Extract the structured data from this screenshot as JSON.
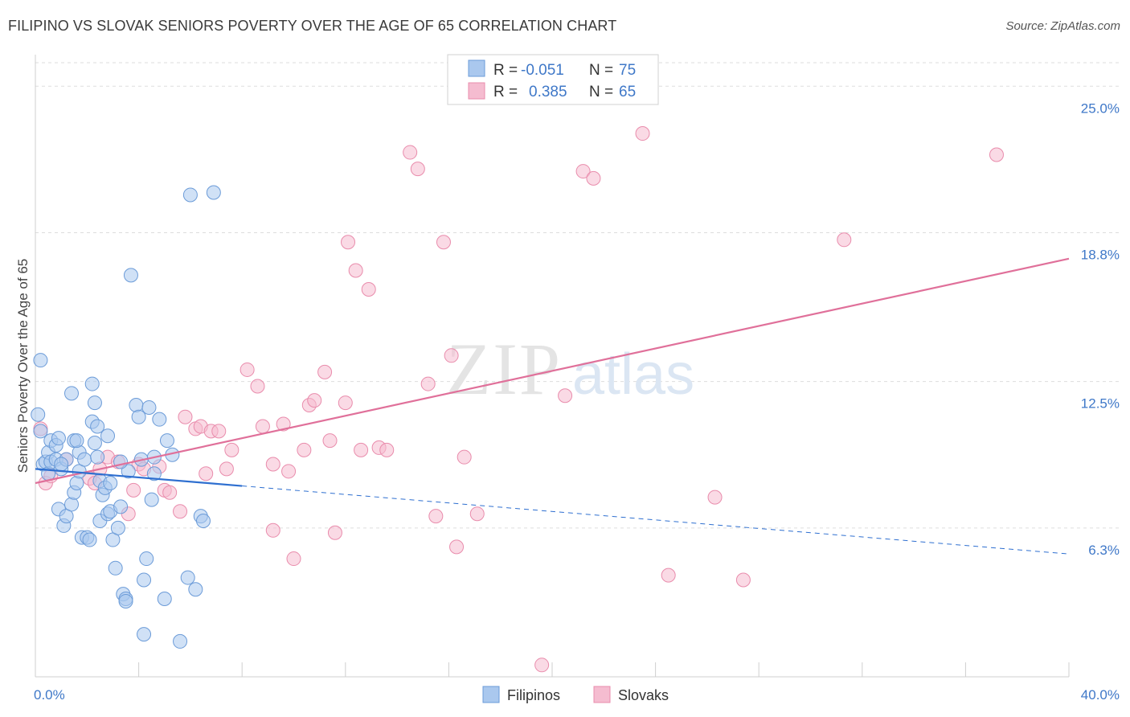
{
  "title": "FILIPINO VS SLOVAK SENIORS POVERTY OVER THE AGE OF 65 CORRELATION CHART",
  "source": "Source: ZipAtlas.com",
  "watermark": {
    "zip": "ZIP",
    "atlas": "atlas"
  },
  "legend": {
    "r_label": "R =",
    "n_label": "N =",
    "rows": [
      {
        "r": "-0.051",
        "n": "75"
      },
      {
        "r": "0.385",
        "n": "65"
      }
    ]
  },
  "bottom_legend": [
    "Filipinos",
    "Slovaks"
  ],
  "colors": {
    "filipino_fill": "#aac8ee",
    "filipino_stroke": "#6b9bd8",
    "filipino_line": "#2e6fd0",
    "slovak_fill": "#f5bcd0",
    "slovak_stroke": "#e98cac",
    "slovak_line": "#e0709a",
    "tick_label": "#3f78c8",
    "grid": "#dddddd"
  },
  "chart_data": {
    "type": "scatter",
    "title": "FILIPINO VS SLOVAK SENIORS POVERTY OVER THE AGE OF 65 CORRELATION CHART",
    "xlabel": "",
    "ylabel": "Seniors Poverty Over the Age of 65",
    "xlim": [
      0,
      40
    ],
    "ylim": [
      0,
      26.2
    ],
    "x_tick_labels": [
      {
        "value": 0,
        "label": "0.0%"
      },
      {
        "value": 40,
        "label": "40.0%"
      }
    ],
    "y_tick_labels": [
      {
        "value": 6.3,
        "label": "6.3%"
      },
      {
        "value": 12.5,
        "label": "12.5%"
      },
      {
        "value": 18.8,
        "label": "18.8%"
      },
      {
        "value": 25.0,
        "label": "25.0%"
      }
    ],
    "grid": "horizontal dashed",
    "series": [
      {
        "name": "Filipinos",
        "r": -0.051,
        "n": 75,
        "trend": {
          "x0": 0,
          "y0": 8.8,
          "x1": 40,
          "y1": 5.2,
          "solid_until": 8
        },
        "points": [
          [
            0.1,
            11.1
          ],
          [
            0.2,
            10.4
          ],
          [
            0.2,
            13.4
          ],
          [
            0.3,
            9.0
          ],
          [
            0.4,
            9.1
          ],
          [
            0.5,
            9.5
          ],
          [
            0.5,
            8.6
          ],
          [
            0.6,
            9.1
          ],
          [
            0.6,
            10.0
          ],
          [
            0.8,
            9.8
          ],
          [
            0.8,
            9.2
          ],
          [
            0.9,
            10.1
          ],
          [
            0.9,
            7.1
          ],
          [
            1.0,
            8.8
          ],
          [
            1.1,
            6.4
          ],
          [
            1.2,
            6.8
          ],
          [
            1.2,
            9.2
          ],
          [
            1.4,
            7.3
          ],
          [
            1.4,
            12.0
          ],
          [
            1.5,
            10.0
          ],
          [
            1.5,
            7.8
          ],
          [
            1.6,
            8.2
          ],
          [
            1.7,
            9.5
          ],
          [
            1.7,
            8.7
          ],
          [
            1.8,
            5.9
          ],
          [
            1.9,
            9.2
          ],
          [
            2.0,
            5.9
          ],
          [
            2.1,
            5.8
          ],
          [
            2.2,
            12.4
          ],
          [
            2.2,
            10.8
          ],
          [
            2.3,
            11.6
          ],
          [
            2.3,
            9.9
          ],
          [
            2.4,
            10.6
          ],
          [
            2.5,
            8.3
          ],
          [
            2.5,
            6.6
          ],
          [
            2.6,
            7.7
          ],
          [
            2.7,
            8.0
          ],
          [
            2.8,
            10.2
          ],
          [
            2.8,
            6.9
          ],
          [
            2.9,
            8.2
          ],
          [
            2.9,
            7.0
          ],
          [
            3.0,
            5.8
          ],
          [
            3.1,
            4.6
          ],
          [
            3.2,
            6.3
          ],
          [
            3.3,
            7.2
          ],
          [
            3.4,
            3.5
          ],
          [
            3.5,
            3.3
          ],
          [
            3.5,
            3.2
          ],
          [
            3.6,
            8.7
          ],
          [
            3.7,
            17.0
          ],
          [
            3.9,
            11.5
          ],
          [
            4.0,
            11.0
          ],
          [
            4.1,
            9.2
          ],
          [
            4.2,
            1.8
          ],
          [
            4.2,
            4.1
          ],
          [
            4.3,
            5.0
          ],
          [
            4.4,
            11.4
          ],
          [
            4.5,
            7.5
          ],
          [
            4.6,
            9.3
          ],
          [
            4.6,
            8.6
          ],
          [
            4.8,
            10.9
          ],
          [
            5.0,
            3.3
          ],
          [
            5.1,
            10.0
          ],
          [
            5.3,
            9.4
          ],
          [
            5.6,
            1.5
          ],
          [
            5.9,
            4.2
          ],
          [
            6.0,
            20.4
          ],
          [
            6.2,
            3.7
          ],
          [
            6.4,
            6.8
          ],
          [
            6.5,
            6.6
          ],
          [
            6.9,
            20.5
          ],
          [
            2.4,
            9.3
          ],
          [
            1.0,
            9.0
          ],
          [
            3.3,
            9.1
          ],
          [
            1.6,
            10.0
          ]
        ]
      },
      {
        "name": "Slovaks",
        "r": 0.385,
        "n": 65,
        "trend": {
          "x0": 0,
          "y0": 8.2,
          "x1": 40,
          "y1": 17.7
        },
        "points": [
          [
            0.2,
            10.5
          ],
          [
            0.4,
            8.2
          ],
          [
            0.6,
            8.5
          ],
          [
            1.2,
            9.2
          ],
          [
            2.1,
            8.4
          ],
          [
            2.3,
            8.2
          ],
          [
            2.5,
            8.8
          ],
          [
            2.8,
            9.3
          ],
          [
            3.2,
            9.1
          ],
          [
            3.6,
            6.9
          ],
          [
            3.8,
            7.9
          ],
          [
            4.0,
            9.0
          ],
          [
            4.2,
            8.8
          ],
          [
            4.8,
            8.9
          ],
          [
            5.0,
            7.9
          ],
          [
            5.2,
            7.8
          ],
          [
            5.6,
            7.0
          ],
          [
            5.8,
            11.0
          ],
          [
            6.2,
            10.5
          ],
          [
            6.4,
            10.6
          ],
          [
            6.6,
            8.6
          ],
          [
            6.8,
            10.4
          ],
          [
            7.1,
            10.4
          ],
          [
            7.4,
            8.8
          ],
          [
            7.6,
            9.6
          ],
          [
            8.2,
            13.0
          ],
          [
            8.6,
            12.3
          ],
          [
            8.8,
            10.6
          ],
          [
            9.2,
            6.2
          ],
          [
            9.6,
            10.7
          ],
          [
            9.8,
            8.7
          ],
          [
            10.0,
            5.0
          ],
          [
            10.4,
            9.6
          ],
          [
            10.6,
            11.5
          ],
          [
            10.8,
            11.7
          ],
          [
            11.2,
            12.9
          ],
          [
            11.4,
            10.0
          ],
          [
            11.6,
            6.1
          ],
          [
            12.1,
            18.4
          ],
          [
            12.4,
            17.2
          ],
          [
            12.6,
            9.6
          ],
          [
            12.9,
            16.4
          ],
          [
            13.3,
            9.7
          ],
          [
            13.6,
            9.6
          ],
          [
            14.5,
            22.2
          ],
          [
            14.8,
            21.5
          ],
          [
            15.2,
            12.4
          ],
          [
            15.5,
            6.8
          ],
          [
            15.8,
            18.4
          ],
          [
            16.1,
            13.6
          ],
          [
            16.3,
            5.5
          ],
          [
            16.6,
            9.3
          ],
          [
            17.1,
            6.9
          ],
          [
            19.6,
            0.5
          ],
          [
            20.5,
            11.9
          ],
          [
            21.2,
            21.4
          ],
          [
            21.6,
            21.1
          ],
          [
            23.5,
            23.0
          ],
          [
            24.5,
            4.3
          ],
          [
            26.3,
            7.6
          ],
          [
            27.4,
            4.1
          ],
          [
            31.3,
            18.5
          ],
          [
            37.2,
            22.1
          ],
          [
            12.0,
            11.6
          ],
          [
            9.2,
            9.0
          ]
        ]
      }
    ]
  }
}
